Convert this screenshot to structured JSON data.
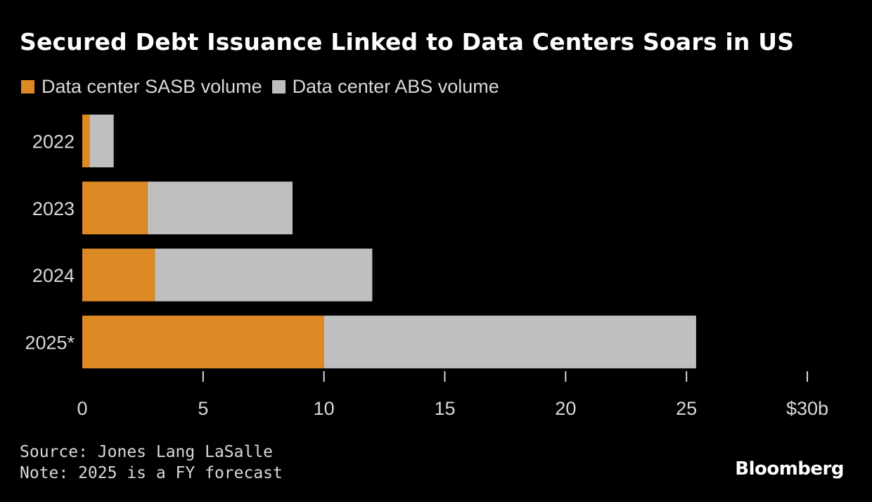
{
  "chart_data": {
    "type": "bar",
    "orientation": "horizontal",
    "stacked": true,
    "title": "Secured Debt Issuance Linked to Data Centers Soars in US",
    "categories": [
      "2022",
      "2023",
      "2024",
      "2025*"
    ],
    "series": [
      {
        "name": "Data center SASB volume",
        "color": "#dd8a25",
        "values": [
          0.3,
          2.7,
          3.0,
          10.0
        ]
      },
      {
        "name": "Data center ABS volume",
        "color": "#bfbfbf",
        "values": [
          1.0,
          6.0,
          9.0,
          15.4
        ]
      }
    ],
    "xlim": [
      0,
      30
    ],
    "xticks": [
      "0",
      "5",
      "10",
      "15",
      "20",
      "25",
      "$30b"
    ],
    "xtick_values": [
      0,
      5,
      10,
      15,
      20,
      25,
      30
    ],
    "legend_position": "top-left",
    "grid": false
  },
  "footer": {
    "source": "Source: Jones Lang LaSalle",
    "note": "Note: 2025 is a FY forecast"
  },
  "brand": "Bloomberg",
  "colors": {
    "background": "#000000",
    "text": "#ffffff",
    "muted_text": "#d9d9d9"
  }
}
